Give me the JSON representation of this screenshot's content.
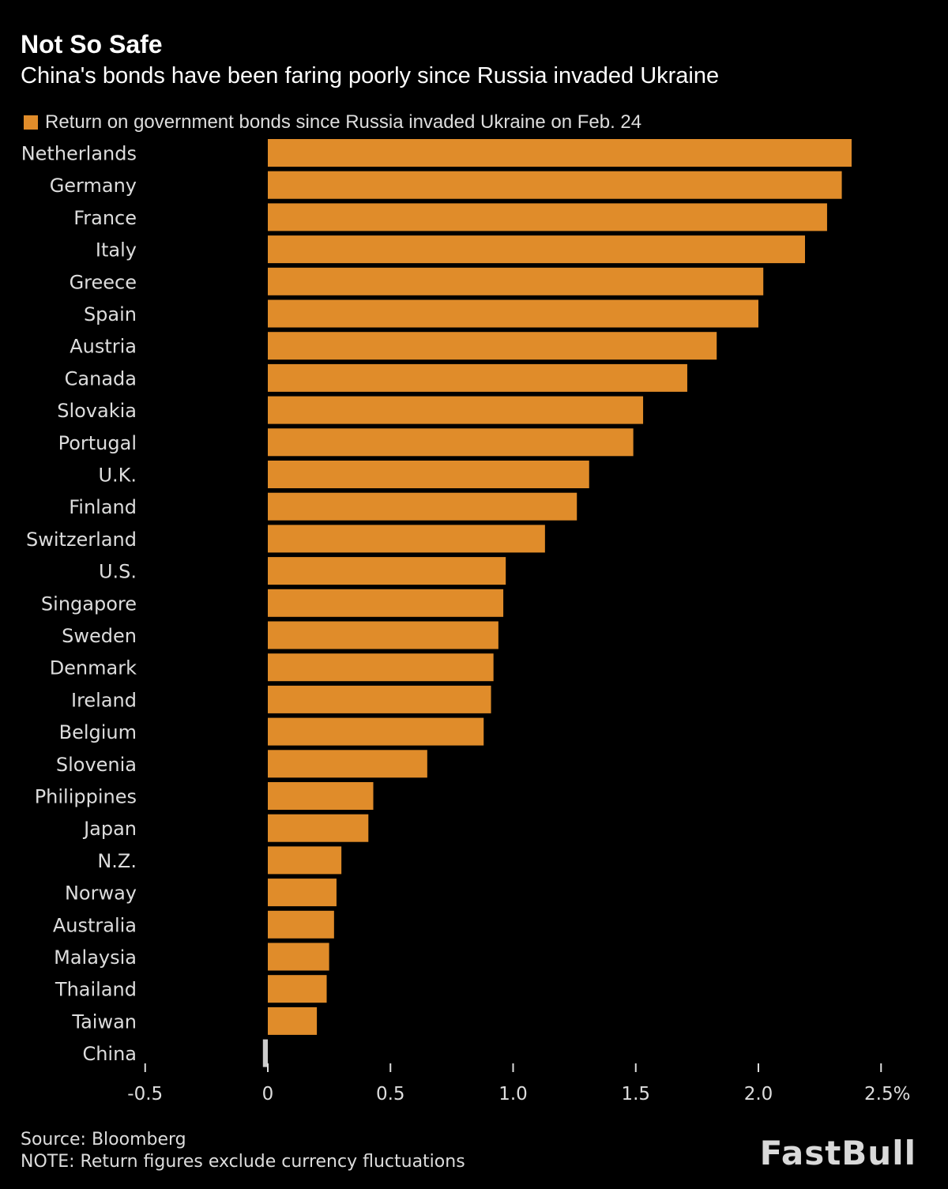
{
  "chart_data": {
    "type": "bar",
    "orientation": "horizontal",
    "title": "Not So Safe",
    "subtitle": "China's bonds have been faring poorly since Russia invaded Ukraine",
    "legend": "Return on government bonds since Russia invaded Ukraine on Feb. 24",
    "legend_placement": "top-left",
    "categories": [
      "Netherlands",
      "Germany",
      "France",
      "Italy",
      "Greece",
      "Spain",
      "Austria",
      "Canada",
      "Slovakia",
      "Portugal",
      "U.K.",
      "Finland",
      "Switzerland",
      "U.S.",
      "Singapore",
      "Sweden",
      "Denmark",
      "Ireland",
      "Belgium",
      "Slovenia",
      "Philippines",
      "Japan",
      "N.Z.",
      "Norway",
      "Australia",
      "Malaysia",
      "Thailand",
      "Taiwan",
      "China"
    ],
    "values": [
      2.38,
      2.34,
      2.28,
      2.19,
      2.02,
      2.0,
      1.83,
      1.71,
      1.53,
      1.49,
      1.31,
      1.26,
      1.13,
      0.97,
      0.96,
      0.94,
      0.92,
      0.91,
      0.88,
      0.65,
      0.43,
      0.41,
      0.3,
      0.28,
      0.27,
      0.25,
      0.24,
      0.2,
      -0.02
    ],
    "xlim": [
      -0.5,
      2.5
    ],
    "x_ticks": [
      "-0.5",
      "0",
      "0.5",
      "1.0",
      "1.5",
      "2.0",
      "2.5%"
    ],
    "x_tick_values": [
      -0.5,
      0,
      0.5,
      1.0,
      1.5,
      2.0,
      2.5
    ],
    "grid": false,
    "colors": {
      "bar": "#e08c2a",
      "highlight": "#cccccc",
      "background": "#000000"
    },
    "source": "Source: Bloomberg",
    "note": "NOTE: Return figures exclude currency fluctuations"
  },
  "watermark": "FastBull"
}
